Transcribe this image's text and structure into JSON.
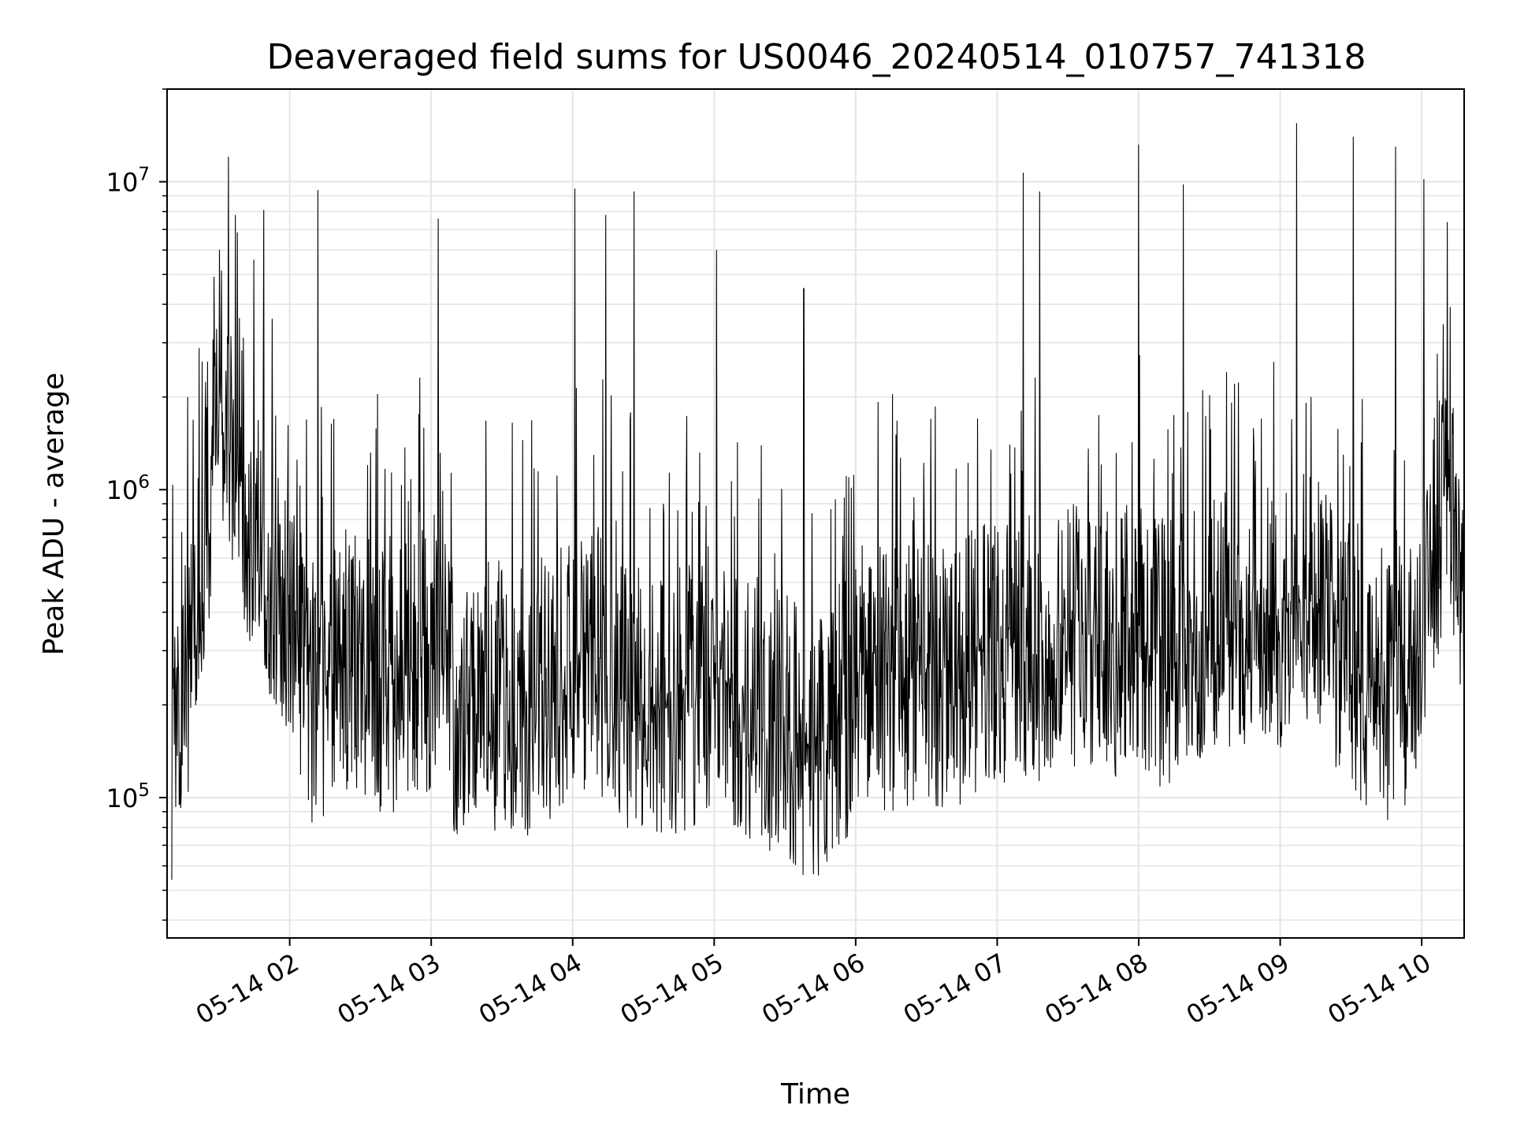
{
  "chart_data": {
    "type": "line",
    "title": "Deaveraged field sums for US0046_20240514_010757_741318",
    "xlabel": "Time",
    "ylabel": "Peak ADU - average",
    "yscale": "log",
    "ylim": [
      35000,
      20000000
    ],
    "xlim": [
      "2024-05-14 01:08",
      "2024-05-14 10:18"
    ],
    "grid": true,
    "line_color": "#000000",
    "grid_color": "#e5e5e5",
    "x_tick_labels": [
      "05-14 02",
      "05-14 03",
      "05-14 04",
      "05-14 05",
      "05-14 06",
      "05-14 07",
      "05-14 08",
      "05-14 09",
      "05-14 10"
    ],
    "x_tick_times": [
      "2024-05-14 02:00",
      "2024-05-14 03:00",
      "2024-05-14 04:00",
      "2024-05-14 05:00",
      "2024-05-14 06:00",
      "2024-05-14 07:00",
      "2024-05-14 08:00",
      "2024-05-14 09:00",
      "2024-05-14 10:00"
    ],
    "y_ticks": [
      {
        "base": "10",
        "exp": "5",
        "value": 100000
      },
      {
        "base": "10",
        "exp": "6",
        "value": 1000000
      },
      {
        "base": "10",
        "exp": "7",
        "value": 10000000
      }
    ],
    "series": [
      {
        "x": [
          "2024-05-14 01:10",
          "2024-05-14 01:20",
          "2024-05-14 01:30",
          "2024-05-14 01:40",
          "2024-05-14 01:50",
          "2024-05-14 02:00",
          "2024-05-14 02:10",
          "2024-05-14 02:20",
          "2024-05-14 02:30",
          "2024-05-14 02:40",
          "2024-05-14 02:50",
          "2024-05-14 03:00",
          "2024-05-14 03:10",
          "2024-05-14 03:20",
          "2024-05-14 03:30",
          "2024-05-14 03:40",
          "2024-05-14 03:50",
          "2024-05-14 04:00",
          "2024-05-14 04:10",
          "2024-05-14 04:20",
          "2024-05-14 04:30",
          "2024-05-14 04:40",
          "2024-05-14 04:50",
          "2024-05-14 05:00",
          "2024-05-14 05:10",
          "2024-05-14 05:20",
          "2024-05-14 05:30",
          "2024-05-14 05:40",
          "2024-05-14 05:50",
          "2024-05-14 06:00",
          "2024-05-14 06:10",
          "2024-05-14 06:20",
          "2024-05-14 06:30",
          "2024-05-14 06:40",
          "2024-05-14 06:50",
          "2024-05-14 07:00",
          "2024-05-14 07:10",
          "2024-05-14 07:20",
          "2024-05-14 07:30",
          "2024-05-14 07:40",
          "2024-05-14 07:50",
          "2024-05-14 08:00",
          "2024-05-14 08:10",
          "2024-05-14 08:20",
          "2024-05-14 08:30",
          "2024-05-14 08:40",
          "2024-05-14 08:50",
          "2024-05-14 09:00",
          "2024-05-14 09:10",
          "2024-05-14 09:20",
          "2024-05-14 09:30",
          "2024-05-14 09:40",
          "2024-05-14 09:50",
          "2024-05-14 10:00",
          "2024-05-14 10:10",
          "2024-05-14 10:18"
        ],
        "y": [
          90000,
          250000,
          1500000,
          500000,
          400000,
          300000,
          150000,
          180000,
          200000,
          160000,
          170000,
          200000,
          140000,
          130000,
          150000,
          140000,
          160000,
          170000,
          200000,
          150000,
          140000,
          130000,
          150000,
          170000,
          140000,
          130000,
          120000,
          100000,
          110000,
          150000,
          160000,
          170000,
          180000,
          170000,
          190000,
          200000,
          220000,
          210000,
          230000,
          220000,
          210000,
          220000,
          200000,
          230000,
          250000,
          260000,
          280000,
          270000,
          300000,
          250000,
          200000,
          150000,
          140000,
          250000,
          700000,
          350000
        ],
        "peaks": [
          {
            "x": "2024-05-14 01:37",
            "y": 7800000
          },
          {
            "x": "2024-05-14 01:49",
            "y": 8100000
          },
          {
            "x": "2024-05-14 02:12",
            "y": 9400000
          },
          {
            "x": "2024-05-14 03:03",
            "y": 7600000
          },
          {
            "x": "2024-05-14 04:01",
            "y": 9500000
          },
          {
            "x": "2024-05-14 04:14",
            "y": 7800000
          },
          {
            "x": "2024-05-14 04:26",
            "y": 9300000
          },
          {
            "x": "2024-05-14 05:01",
            "y": 6000000
          },
          {
            "x": "2024-05-14 05:38",
            "y": 4500000
          },
          {
            "x": "2024-05-14 07:11",
            "y": 10700000
          },
          {
            "x": "2024-05-14 07:18",
            "y": 9300000
          },
          {
            "x": "2024-05-14 08:00",
            "y": 13200000
          },
          {
            "x": "2024-05-14 08:19",
            "y": 9800000
          },
          {
            "x": "2024-05-14 09:07",
            "y": 15500000
          },
          {
            "x": "2024-05-14 09:31",
            "y": 14000000
          },
          {
            "x": "2024-05-14 09:49",
            "y": 13000000
          },
          {
            "x": "2024-05-14 10:01",
            "y": 10200000
          }
        ]
      }
    ]
  }
}
